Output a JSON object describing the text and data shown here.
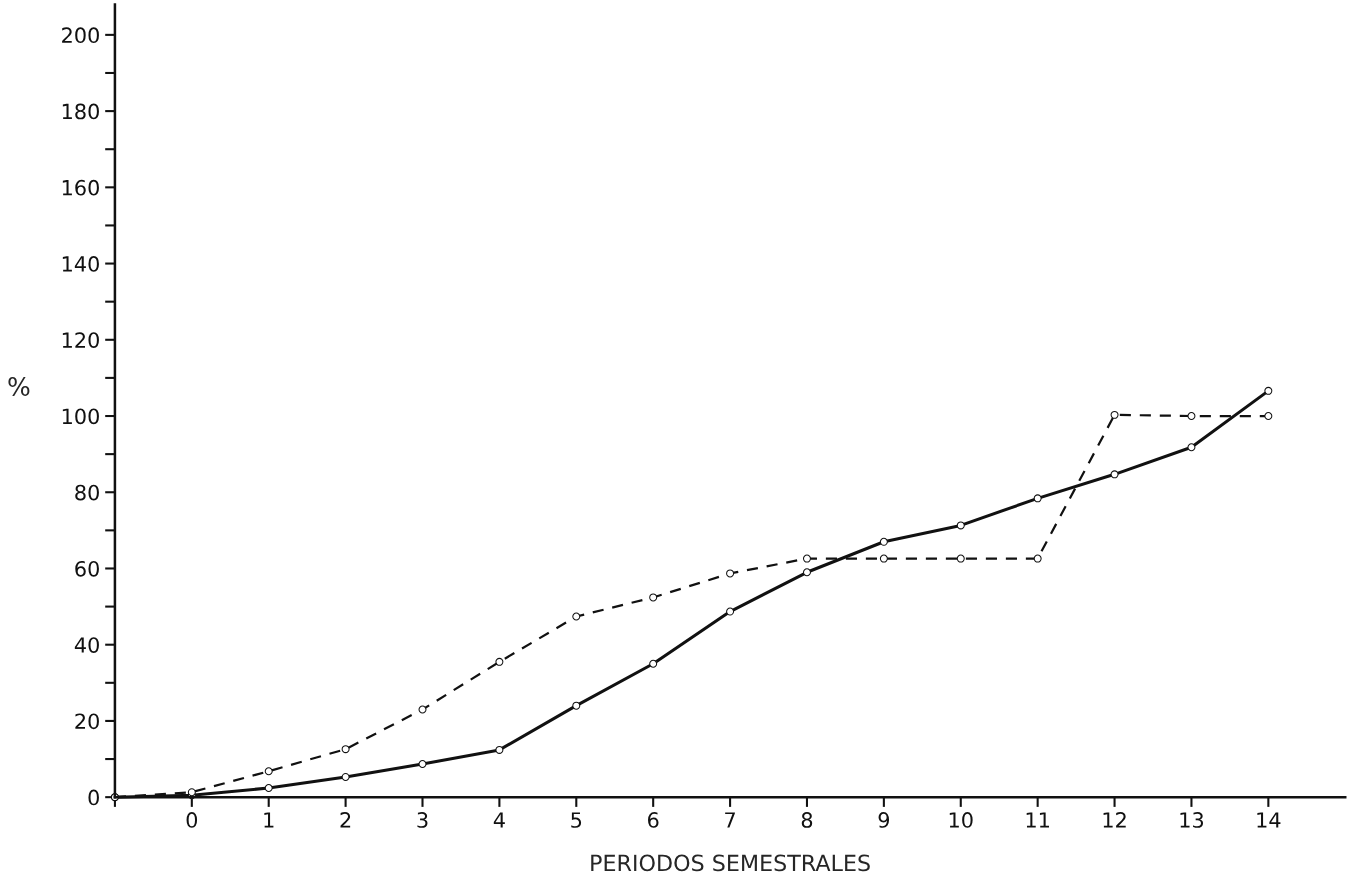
{
  "chart_data": {
    "type": "line",
    "xlabel": "PERIODOS SEMESTRALES",
    "ylabel": "%",
    "xlim": [
      -1,
      15
    ],
    "ylim": [
      0,
      208
    ],
    "xticks": [
      {
        "value": -1,
        "label": null
      },
      0,
      1,
      2,
      3,
      4,
      5,
      6,
      7,
      8,
      9,
      10,
      11,
      12,
      13,
      14
    ],
    "yticks": [
      0,
      {
        "value": 10,
        "label": null
      },
      20,
      {
        "value": 30,
        "label": null
      },
      40,
      {
        "value": 50,
        "label": null
      },
      60,
      {
        "value": 70,
        "label": null
      },
      80,
      {
        "value": 90,
        "label": null
      },
      100,
      {
        "value": 110,
        "label": null
      },
      120,
      {
        "value": 130,
        "label": null
      },
      140,
      {
        "value": 150,
        "label": null
      },
      160,
      {
        "value": 170,
        "label": null
      },
      180,
      {
        "value": 190,
        "label": null
      },
      200
    ],
    "x": [
      -1,
      0,
      1,
      2,
      3,
      4,
      5,
      6,
      7,
      8,
      9,
      10,
      11,
      12,
      13,
      14
    ],
    "grid": false,
    "marker": "circle",
    "series": [
      {
        "color": "#111111",
        "line_style": "solid",
        "values": [
          0,
          0.5,
          2.4,
          5.3,
          8.7,
          12.4,
          24,
          35,
          48.7,
          59,
          67,
          71.3,
          78.4,
          84.7,
          91.8,
          106.6
        ]
      },
      {
        "color": "#111111",
        "line_style": "dashed",
        "values": [
          0,
          1.3,
          6.8,
          12.6,
          23,
          35.5,
          47.4,
          52.4,
          58.7,
          62.6,
          62.6,
          62.6,
          62.6,
          100.3,
          100,
          100
        ]
      }
    ]
  }
}
